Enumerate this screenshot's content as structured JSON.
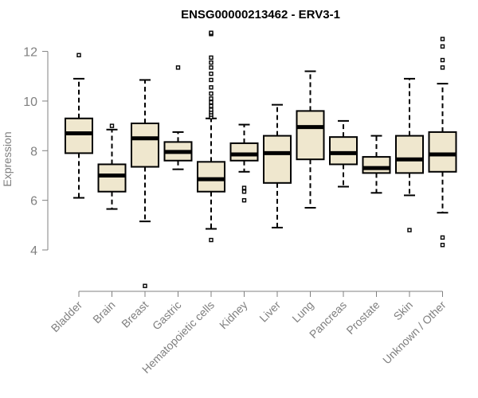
{
  "chart_data": {
    "type": "boxplot",
    "title": "ENSG00000213462 - ERV3-1",
    "ylabel": "Expression",
    "xlabel": "",
    "ylim": [
      2.5,
      13
    ],
    "yticks": [
      4,
      6,
      8,
      10,
      12
    ],
    "categories": [
      "Bladder",
      "Brain",
      "Breast",
      "Gastric",
      "Hematopoietic cells",
      "Kidney",
      "Liver",
      "Lung",
      "Pancreas",
      "Prostate",
      "Skin",
      "Unknown / Other"
    ],
    "box_fill": "#efe7ce",
    "stroke": "#000000",
    "boxes": [
      {
        "q1": 7.9,
        "median": 8.7,
        "q3": 9.3,
        "whisker_low": 6.1,
        "whisker_high": 10.9,
        "outliers": [
          11.85
        ]
      },
      {
        "q1": 6.35,
        "median": 7.0,
        "q3": 7.45,
        "whisker_low": 5.65,
        "whisker_high": 8.85,
        "outliers": [
          9.0
        ]
      },
      {
        "q1": 7.35,
        "median": 8.5,
        "q3": 9.1,
        "whisker_low": 5.15,
        "whisker_high": 10.85,
        "outliers": [
          2.55
        ]
      },
      {
        "q1": 7.6,
        "median": 7.95,
        "q3": 8.35,
        "whisker_low": 7.25,
        "whisker_high": 8.75,
        "outliers": [
          11.35
        ]
      },
      {
        "q1": 6.35,
        "median": 6.85,
        "q3": 7.55,
        "whisker_low": 4.85,
        "whisker_high": 9.3,
        "outliers": [
          4.4,
          9.35,
          9.45,
          9.55,
          9.65,
          9.8,
          9.95,
          10.1,
          10.3,
          10.55,
          10.85,
          11.1,
          11.35,
          11.55,
          11.75,
          12.7,
          12.75
        ]
      },
      {
        "q1": 7.6,
        "median": 7.85,
        "q3": 8.3,
        "whisker_low": 7.15,
        "whisker_high": 9.05,
        "outliers": [
          6.0,
          6.35,
          6.5
        ]
      },
      {
        "q1": 6.7,
        "median": 7.9,
        "q3": 8.6,
        "whisker_low": 4.9,
        "whisker_high": 9.85,
        "outliers": []
      },
      {
        "q1": 7.65,
        "median": 8.95,
        "q3": 9.6,
        "whisker_low": 5.7,
        "whisker_high": 11.2,
        "outliers": []
      },
      {
        "q1": 7.45,
        "median": 7.9,
        "q3": 8.55,
        "whisker_low": 6.55,
        "whisker_high": 9.2,
        "outliers": []
      },
      {
        "q1": 7.1,
        "median": 7.3,
        "q3": 7.75,
        "whisker_low": 6.3,
        "whisker_high": 8.6,
        "outliers": []
      },
      {
        "q1": 7.1,
        "median": 7.65,
        "q3": 8.6,
        "whisker_low": 6.2,
        "whisker_high": 10.9,
        "outliers": [
          4.8
        ]
      },
      {
        "q1": 7.15,
        "median": 7.85,
        "q3": 8.75,
        "whisker_low": 5.5,
        "whisker_high": 10.7,
        "outliers": [
          4.2,
          4.5,
          11.35,
          11.65,
          12.2,
          12.5
        ]
      }
    ]
  }
}
